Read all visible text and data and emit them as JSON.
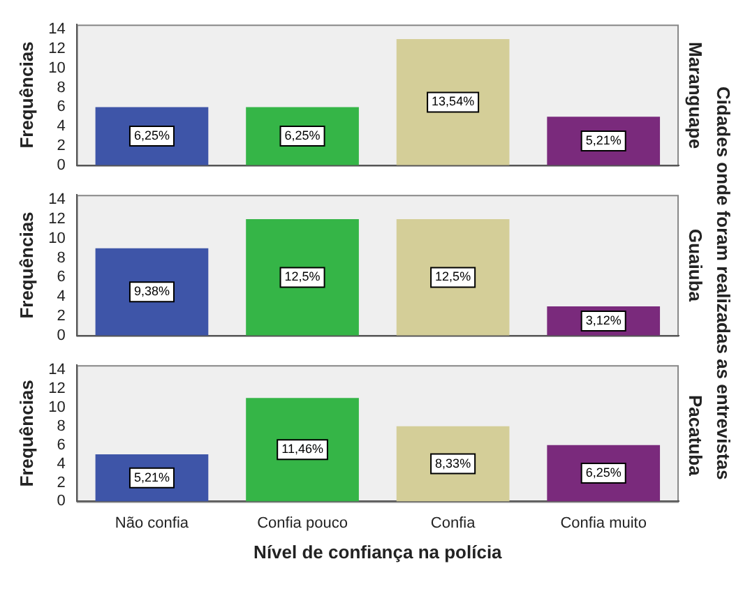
{
  "chart_data": [
    {
      "type": "bar",
      "title": "Maranguape",
      "ylabel": "Frequências",
      "tick_labels": "y",
      "categories": [
        "Não confia",
        "Confia pouco",
        "Confia",
        "Confia muito"
      ],
      "values": [
        6,
        6,
        13,
        5
      ],
      "colors": [
        "#3e55a8",
        "#35b547",
        "#d4ce98",
        "#7a2a7c"
      ],
      "annotations": [
        {
          "text": "6,25%",
          "x": "Não confia",
          "y": 3
        },
        {
          "text": "6,25%",
          "x": "Confia pouco",
          "y": 3
        },
        {
          "text": "13,54%",
          "x": "Confia",
          "y": 6.5
        },
        {
          "text": "5,21%",
          "x": "Confia muito",
          "y": 2.5
        }
      ],
      "ylim": [
        0,
        14.5
      ],
      "yticks": [
        0,
        2,
        4,
        6,
        8,
        10,
        12,
        14
      ]
    },
    {
      "type": "bar",
      "title": "Guaiuba",
      "ylabel": "Frequências",
      "y2label": "Cidades onde foram realizadas as entrevistas",
      "tick_labels": "y",
      "categories": [
        "Não confia",
        "Confia pouco",
        "Confia",
        "Confia muito"
      ],
      "values": [
        9,
        12,
        12,
        3
      ],
      "colors": [
        "#3e55a8",
        "#35b547",
        "#d4ce98",
        "#7a2a7c"
      ],
      "annotations": [
        {
          "text": "9,38%",
          "x": "Não confia",
          "y": 4.5
        },
        {
          "text": "12,5%",
          "x": "Confia pouco",
          "y": 6
        },
        {
          "text": "12,5%",
          "x": "Confia",
          "y": 6
        },
        {
          "text": "3,12%",
          "x": "Confia muito",
          "y": 1.5
        }
      ],
      "ylim": [
        0,
        14.5
      ],
      "yticks": [
        0,
        2,
        4,
        6,
        8,
        10,
        12,
        14
      ]
    },
    {
      "type": "bar",
      "title": "Pacatuba",
      "ylabel": "Frequências",
      "xlabel": "Nível de confiança na polícia",
      "categories": [
        "Não confia",
        "Confia pouco",
        "Confia",
        "Confia muito"
      ],
      "values": [
        5,
        11,
        8,
        6
      ],
      "colors": [
        "#3e55a8",
        "#35b547",
        "#d4ce98",
        "#7a2a7c"
      ],
      "annotations": [
        {
          "text": "5,21%",
          "x": "Não confia",
          "y": 2.5
        },
        {
          "text": "11,46%",
          "x": "Confia pouco",
          "y": 5.5
        },
        {
          "text": "8,33%",
          "x": "Confia",
          "y": 4
        },
        {
          "text": "6,25%",
          "x": "Confia muito",
          "y": 3
        }
      ],
      "ylim": [
        0,
        14.5
      ],
      "yticks": [
        0,
        2,
        4,
        6,
        8,
        10,
        12,
        14
      ]
    }
  ]
}
